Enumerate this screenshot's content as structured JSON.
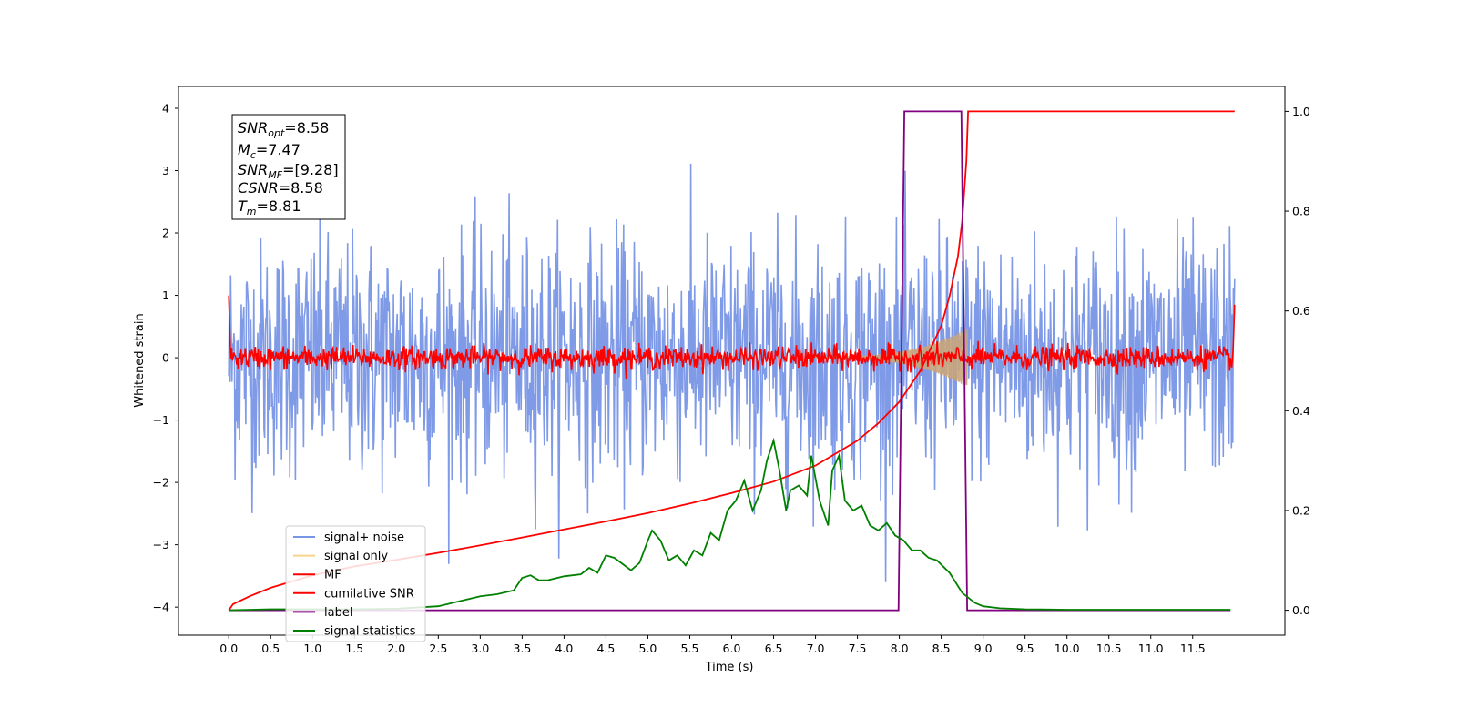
{
  "chart_data": {
    "type": "line",
    "xlabel": "Time (s)",
    "ylabel": "Whitened strain",
    "xlim": [
      -0.6,
      12.6
    ],
    "ylim": [
      -4.45,
      4.35
    ],
    "y2lim": [
      -0.05,
      1.05
    ],
    "x_ticks": [
      "0.0",
      "0.5",
      "1.0",
      "1.5",
      "2.0",
      "2.5",
      "3.0",
      "3.5",
      "4.0",
      "4.5",
      "5.0",
      "5.5",
      "6.0",
      "6.5",
      "7.0",
      "7.5",
      "8.0",
      "8.5",
      "9.0",
      "9.5",
      "10.0",
      "10.5",
      "11.0",
      "11.5"
    ],
    "y_ticks": [
      "4",
      "3",
      "2",
      "1",
      "0",
      "−1",
      "−2",
      "−3",
      "−4"
    ],
    "y2_ticks": [
      "1.0",
      "0.8",
      "0.6",
      "0.4",
      "0.2",
      "0.0"
    ],
    "legend": {
      "location": "lower-left",
      "entries": [
        {
          "label": "signal+ noise",
          "color": "#7895e6"
        },
        {
          "label": "signal only",
          "color": "#f9d38a"
        },
        {
          "label": "MF",
          "color": "#ff0000"
        },
        {
          "label": "cumilative SNR",
          "color": "#ff0000"
        },
        {
          "label": "label",
          "color": "#800080"
        },
        {
          "label": "signal statistics",
          "color": "#008000"
        }
      ]
    },
    "annotation": {
      "snr_opt": {
        "base": "SNR",
        "sub": "opt",
        "value": "=8.58"
      },
      "m_c": {
        "base": "M",
        "sub": "c",
        "value": "=7.47"
      },
      "snr_mf": {
        "base": "SNR",
        "sub": "MF",
        "value": "=[9.28]"
      },
      "csnr": {
        "base": "CSNR",
        "sub": "",
        "value": "=8.58"
      },
      "t_m": {
        "base": "T",
        "sub": "m",
        "value": "=8.81"
      }
    },
    "series": [
      {
        "name": "cumilative SNR",
        "axis": "right",
        "color": "#ff0000",
        "x": [
          0.0,
          0.05,
          0.25,
          0.5,
          1.0,
          1.5,
          2.0,
          2.5,
          3.0,
          3.5,
          4.0,
          4.5,
          5.0,
          5.5,
          6.0,
          6.5,
          7.0,
          7.5,
          7.75,
          8.0,
          8.25,
          8.5,
          8.6,
          8.7,
          8.75,
          8.8,
          8.82,
          12.0
        ],
        "y": [
          0.0,
          0.012,
          0.028,
          0.045,
          0.07,
          0.088,
          0.101,
          0.115,
          0.13,
          0.146,
          0.162,
          0.178,
          0.195,
          0.214,
          0.235,
          0.258,
          0.29,
          0.34,
          0.375,
          0.418,
          0.48,
          0.57,
          0.63,
          0.71,
          0.78,
          0.9,
          1.0,
          1.0
        ]
      },
      {
        "name": "label",
        "axis": "right",
        "color": "#800080",
        "x": [
          0.0,
          7.99,
          8.06,
          8.74,
          8.81,
          11.95
        ],
        "y": [
          0,
          0,
          1,
          1,
          0,
          0
        ]
      },
      {
        "name": "signal statistics",
        "axis": "right",
        "color": "#008000",
        "x": [
          0.0,
          0.5,
          1.0,
          1.5,
          2.0,
          2.5,
          2.8,
          3.0,
          3.2,
          3.4,
          3.5,
          3.6,
          3.7,
          3.8,
          4.0,
          4.2,
          4.3,
          4.4,
          4.5,
          4.6,
          4.8,
          4.9,
          5.0,
          5.05,
          5.15,
          5.25,
          5.35,
          5.45,
          5.55,
          5.65,
          5.75,
          5.85,
          5.95,
          6.05,
          6.15,
          6.25,
          6.35,
          6.42,
          6.5,
          6.57,
          6.65,
          6.7,
          6.8,
          6.9,
          6.95,
          7.05,
          7.15,
          7.2,
          7.28,
          7.35,
          7.45,
          7.55,
          7.65,
          7.75,
          7.85,
          7.95,
          8.05,
          8.15,
          8.25,
          8.35,
          8.45,
          8.6,
          8.75,
          8.9,
          9.0,
          9.2,
          9.5,
          10.0,
          10.5,
          11.0,
          11.5,
          11.95
        ],
        "y": [
          0.0,
          0.002,
          0.002,
          0.002,
          0.003,
          0.008,
          0.02,
          0.028,
          0.032,
          0.04,
          0.065,
          0.07,
          0.06,
          0.06,
          0.068,
          0.072,
          0.085,
          0.075,
          0.11,
          0.105,
          0.08,
          0.095,
          0.14,
          0.16,
          0.14,
          0.1,
          0.11,
          0.09,
          0.12,
          0.11,
          0.155,
          0.14,
          0.2,
          0.22,
          0.26,
          0.2,
          0.24,
          0.3,
          0.34,
          0.28,
          0.2,
          0.24,
          0.25,
          0.23,
          0.31,
          0.22,
          0.17,
          0.28,
          0.31,
          0.22,
          0.2,
          0.21,
          0.17,
          0.16,
          0.175,
          0.15,
          0.14,
          0.12,
          0.12,
          0.105,
          0.1,
          0.075,
          0.035,
          0.015,
          0.008,
          0.004,
          0.002,
          0.001,
          0.001,
          0.001,
          0.001,
          0.001
        ]
      }
    ]
  }
}
